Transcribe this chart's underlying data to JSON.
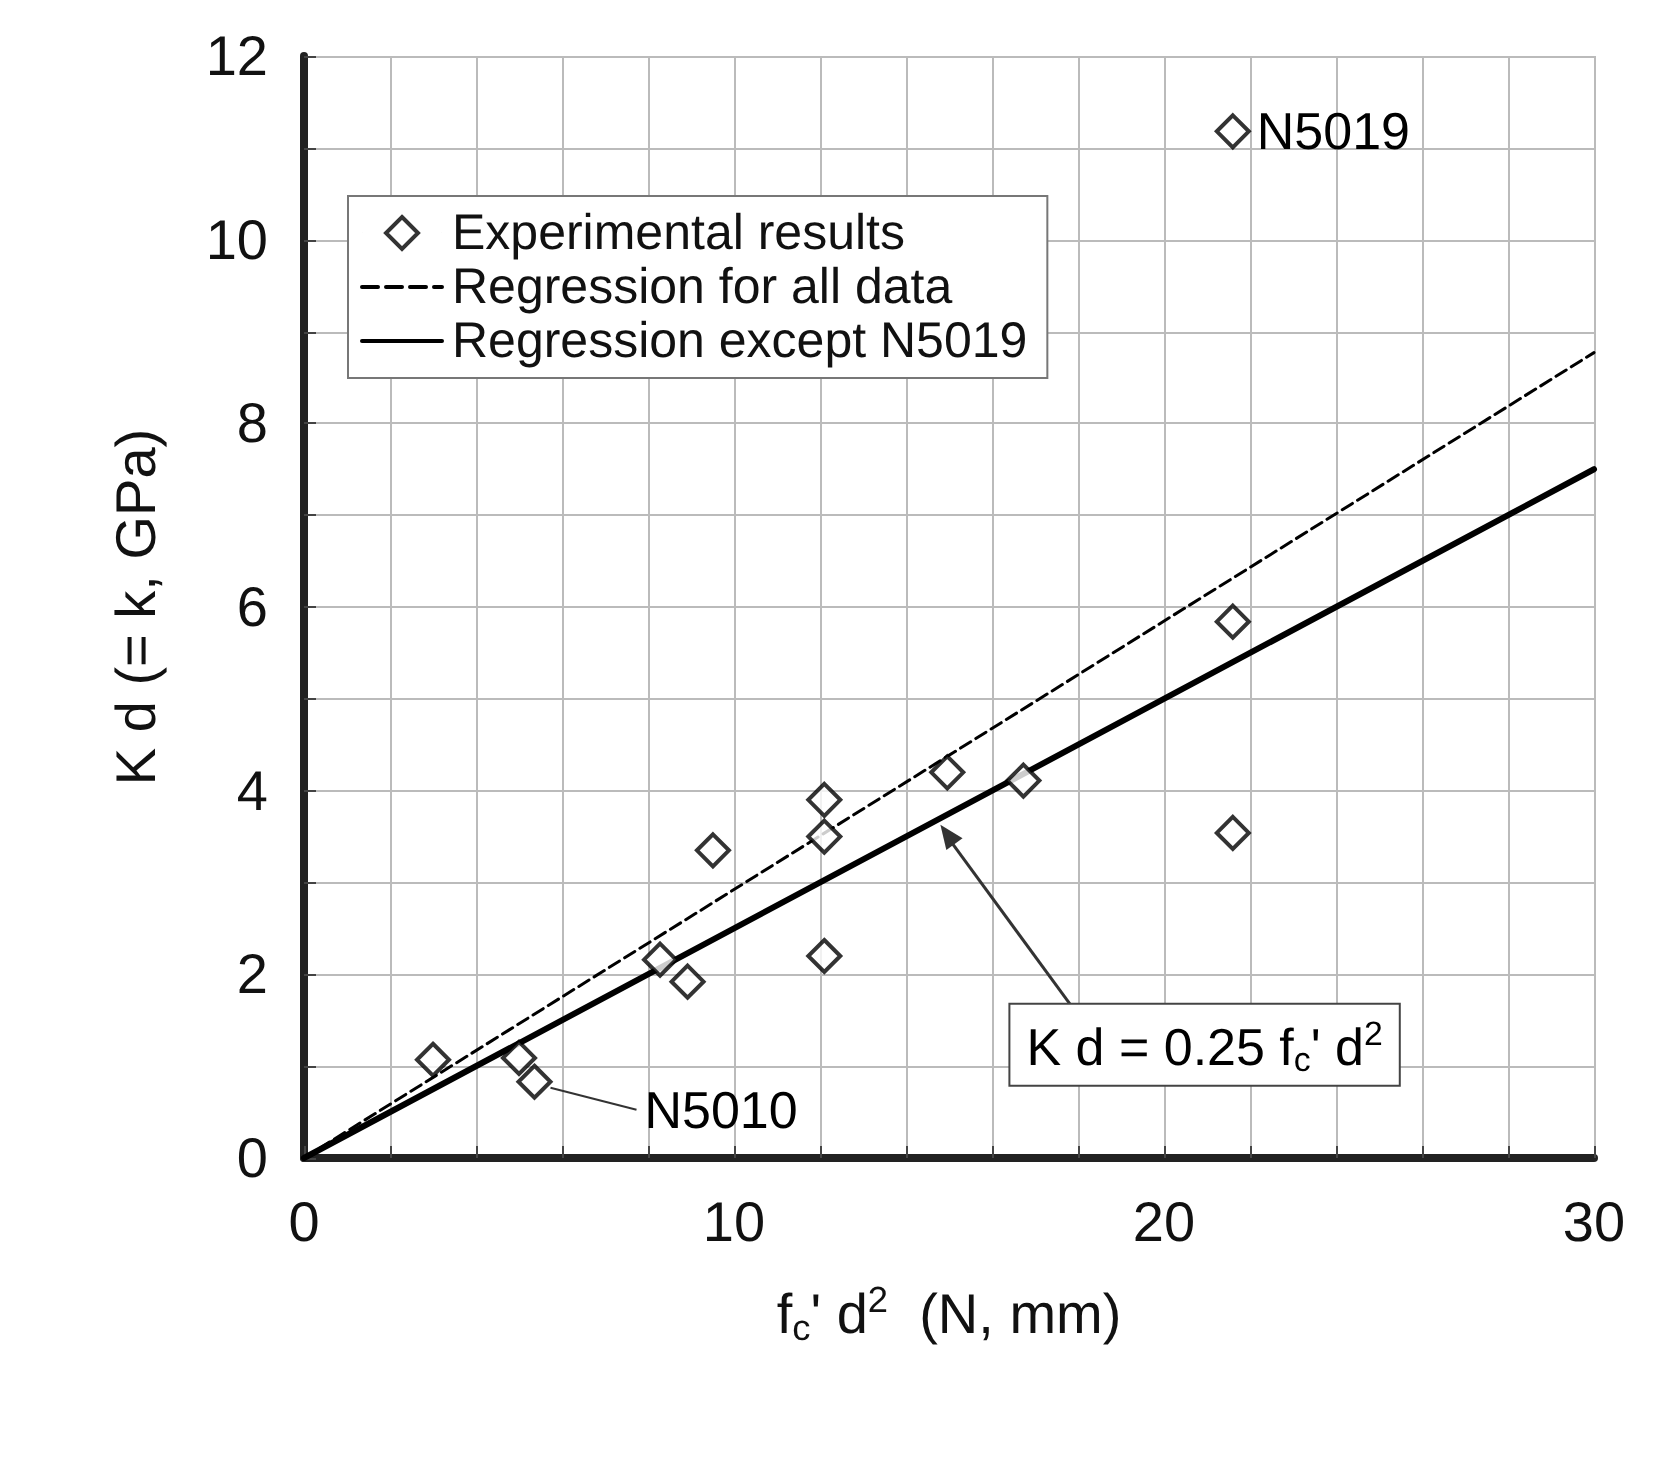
{
  "chart_data": {
    "type": "scatter",
    "xlabel": "f$_{c}$' d$^{2}$  (N, mm)",
    "ylabel": "K d (= k, GPa)",
    "xlim": [
      0,
      30
    ],
    "ylim": [
      0,
      12
    ],
    "xticks": [
      0,
      {
        "value": 2,
        "label": null
      },
      {
        "value": 4,
        "label": null
      },
      {
        "value": 6,
        "label": null
      },
      {
        "value": 8,
        "label": null
      },
      10,
      {
        "value": 12,
        "label": null
      },
      {
        "value": 14,
        "label": null
      },
      {
        "value": 16,
        "label": null
      },
      {
        "value": 18,
        "label": null
      },
      20,
      {
        "value": 22,
        "label": null
      },
      {
        "value": 24,
        "label": null
      },
      {
        "value": 26,
        "label": null
      },
      {
        "value": 28,
        "label": null
      },
      30
    ],
    "yticks": [
      0,
      {
        "value": 1,
        "label": null
      },
      2,
      {
        "value": 3,
        "label": null
      },
      4,
      {
        "value": 5,
        "label": null
      },
      6,
      {
        "value": 7,
        "label": null
      },
      8,
      {
        "value": 9,
        "label": null
      },
      10,
      {
        "value": 11,
        "label": null
      },
      12
    ],
    "grid": true,
    "legend": "top left",
    "series": [
      {
        "name": "Experimental results",
        "type": "scatter",
        "marker": "diamond",
        "color": "#000000",
        "x": [
          3.0,
          5.0,
          5.36,
          8.28,
          8.92,
          9.51,
          12.1,
          12.1,
          12.1,
          14.96,
          16.73,
          21.6,
          21.6,
          21.6
        ],
        "values": [
          1.07,
          1.09,
          0.83,
          2.16,
          1.92,
          3.35,
          3.9,
          3.5,
          2.2,
          4.2,
          4.11,
          5.84,
          3.54,
          11.18
        ]
      },
      {
        "name": "Regression for all data",
        "type": "line",
        "line_style": "dashed",
        "marker": "none",
        "color": "#000000",
        "x": [
          0,
          30
        ],
        "values": [
          0,
          8.77
        ]
      },
      {
        "name": "Regression except N5019",
        "type": "line",
        "line_style": "solid",
        "marker": "none",
        "color": "#000000",
        "x": [
          0,
          30
        ],
        "values": [
          0,
          7.5
        ]
      }
    ],
    "annotations": [
      {
        "text": "N5019",
        "x": 21.6,
        "y": 11.18
      },
      {
        "text": "N5010",
        "x": 5.36,
        "y": 0.83
      },
      {
        "text": "K d = 0.25 f$_{c}$' d$^{2}$",
        "x": 14.8,
        "y": 3.63
      }
    ]
  }
}
